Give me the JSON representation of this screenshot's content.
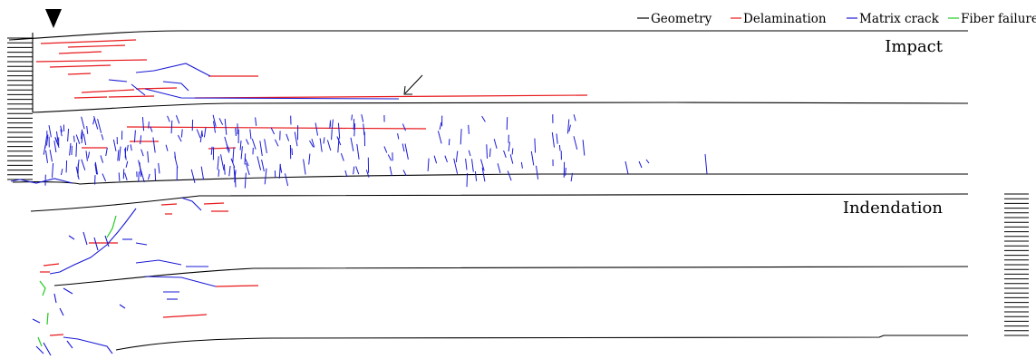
{
  "legend": {
    "items": [
      {
        "label": "Geometry",
        "color": "#000000"
      },
      {
        "label": "Delamination",
        "color": "#e8191c"
      },
      {
        "label": "Matrix crack",
        "color": "#1a1ad6"
      },
      {
        "label": "Fiber failure",
        "color": "#22cc22"
      }
    ]
  },
  "panels": {
    "impact": {
      "title": "Impact"
    },
    "indentation": {
      "title": "Indendation"
    }
  },
  "colors": {
    "geometry": "#000000",
    "delamination": "#e8191c",
    "matrix_crack": "#1a1ad6",
    "fiber_failure": "#22cc22"
  },
  "icons": [
    "impact-arrowhead-icon",
    "crack-pointer-arrow-icon"
  ]
}
